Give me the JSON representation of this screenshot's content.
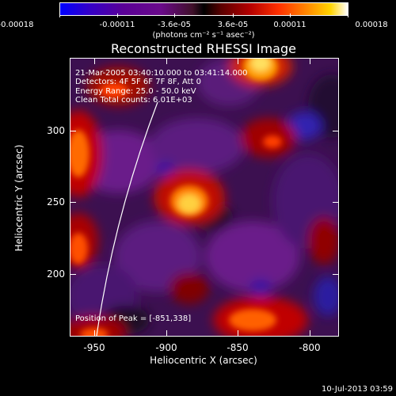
{
  "colorbar": {
    "tick_labels": [
      "-0.00018",
      "-0.00011",
      "-3.6e-05",
      "3.6e-05",
      "0.00011",
      "0.00018"
    ],
    "units": "(photons cm⁻² s⁻¹ asec⁻²)"
  },
  "title": "Reconstructed RHESSI Image",
  "info": {
    "time": "21-Mar-2005 03:40:10.000 to 03:41:14.000",
    "detectors": "Detectors: 4F 5F 6F 7F 8F, Att 0",
    "energy": "Energy Range: 25.0 - 50.0 keV",
    "clean": "Clean     Total counts: 6.01E+03",
    "peak": "Position of Peak = [-851,338]"
  },
  "axes": {
    "x_title": "Heliocentric X (arcsec)",
    "y_title": "Heliocentric Y (arcsec)",
    "x_ticks": [
      "-950",
      "-900",
      "-850",
      "-800"
    ],
    "y_ticks": [
      "300",
      "250",
      "200"
    ]
  },
  "datestamp": "10-Jul-2013 03:59"
}
